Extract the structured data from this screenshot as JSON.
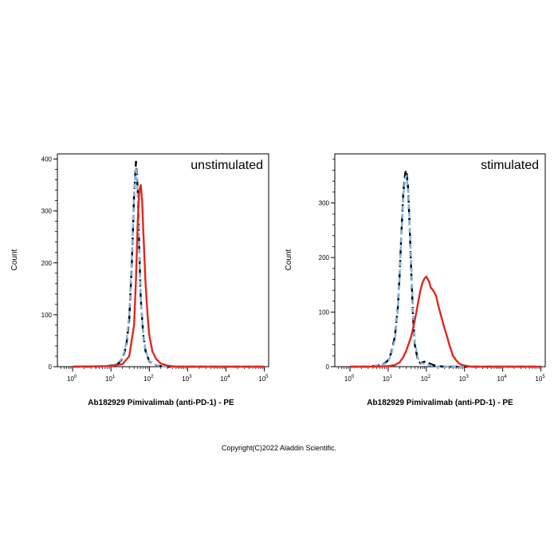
{
  "copyright": "Copyright(C)2022 Aladdin Scientific.",
  "chart_data": [
    {
      "type": "line",
      "annotation": "unstimulated",
      "xlabel": "Ab182929 Pimivalimab (anti-PD-1) - PE",
      "ylabel": "Count",
      "x_scale": "log",
      "xlim": [
        0.4,
        130000
      ],
      "ylim": [
        0,
        410
      ],
      "yticks": [
        0,
        100,
        200,
        300,
        400
      ],
      "xticks": [
        1,
        10,
        100,
        1000,
        10000,
        100000
      ],
      "grid": false,
      "series": [
        {
          "color": "#000000",
          "dash": "long",
          "x": [
            1,
            5,
            10,
            15,
            20,
            25,
            30,
            35,
            40,
            45,
            50,
            55,
            60,
            70,
            80,
            100,
            150,
            200,
            300,
            500,
            1000,
            100000
          ],
          "y": [
            0,
            0,
            2,
            5,
            15,
            40,
            90,
            200,
            330,
            395,
            340,
            220,
            130,
            60,
            30,
            10,
            3,
            1,
            0,
            0,
            0,
            0
          ]
        },
        {
          "color": "#7fb5e0",
          "dash": "medium",
          "x": [
            1,
            5,
            10,
            15,
            20,
            25,
            30,
            35,
            40,
            45,
            50,
            55,
            60,
            70,
            80,
            100,
            150,
            200,
            300,
            500,
            1000,
            100000
          ],
          "y": [
            0,
            0,
            2,
            6,
            17,
            45,
            100,
            210,
            335,
            385,
            330,
            215,
            130,
            62,
            32,
            11,
            3,
            1,
            0,
            0,
            0,
            0
          ]
        },
        {
          "color": "#e0281e",
          "dash": "solid",
          "x": [
            1,
            10,
            20,
            30,
            40,
            45,
            50,
            55,
            60,
            65,
            70,
            80,
            90,
            100,
            120,
            150,
            200,
            300,
            500,
            1000,
            100000
          ],
          "y": [
            0,
            1,
            5,
            20,
            80,
            170,
            280,
            340,
            350,
            320,
            260,
            160,
            100,
            60,
            30,
            15,
            6,
            2,
            0,
            0,
            0
          ]
        }
      ]
    },
    {
      "type": "line",
      "annotation": "stimulated",
      "xlabel": "Ab182929 Pimivalimab (anti-PD-1) - PE",
      "ylabel": "Count",
      "x_scale": "log",
      "xlim": [
        0.4,
        130000
      ],
      "ylim": [
        0,
        390
      ],
      "yticks": [
        0,
        100,
        200,
        300
      ],
      "xticks": [
        1,
        10,
        100,
        1000,
        10000,
        100000
      ],
      "grid": false,
      "series": [
        {
          "color": "#000000",
          "dash": "long",
          "x": [
            1,
            3,
            5,
            8,
            10,
            12,
            15,
            18,
            20,
            22,
            25,
            28,
            30,
            33,
            36,
            40,
            45,
            50,
            60,
            70,
            80,
            100,
            120,
            150,
            200,
            300,
            1000,
            100000
          ],
          "y": [
            0,
            0,
            2,
            6,
            12,
            25,
            55,
            110,
            170,
            240,
            320,
            355,
            360,
            330,
            270,
            180,
            90,
            40,
            12,
            6,
            8,
            10,
            6,
            3,
            1,
            0,
            0,
            0
          ]
        },
        {
          "color": "#7fb5e0",
          "dash": "medium",
          "x": [
            1,
            3,
            5,
            8,
            10,
            12,
            15,
            18,
            20,
            22,
            25,
            28,
            30,
            33,
            36,
            40,
            45,
            50,
            60,
            70,
            80,
            100,
            120,
            150,
            200,
            300,
            1000,
            100000
          ],
          "y": [
            0,
            0,
            2,
            5,
            10,
            22,
            50,
            105,
            165,
            235,
            315,
            345,
            350,
            325,
            275,
            190,
            100,
            45,
            15,
            7,
            6,
            5,
            3,
            1,
            0,
            0,
            0,
            0
          ]
        },
        {
          "color": "#e0281e",
          "dash": "solid",
          "x": [
            1,
            5,
            10,
            15,
            20,
            25,
            30,
            40,
            50,
            60,
            70,
            80,
            90,
            100,
            110,
            120,
            130,
            150,
            180,
            200,
            250,
            300,
            350,
            400,
            500,
            600,
            700,
            800,
            1000,
            1500,
            100000
          ],
          "y": [
            0,
            0,
            1,
            3,
            8,
            18,
            30,
            55,
            85,
            115,
            140,
            155,
            162,
            165,
            160,
            155,
            145,
            140,
            130,
            115,
            90,
            70,
            55,
            40,
            20,
            12,
            7,
            4,
            2,
            0,
            0
          ]
        }
      ]
    }
  ]
}
